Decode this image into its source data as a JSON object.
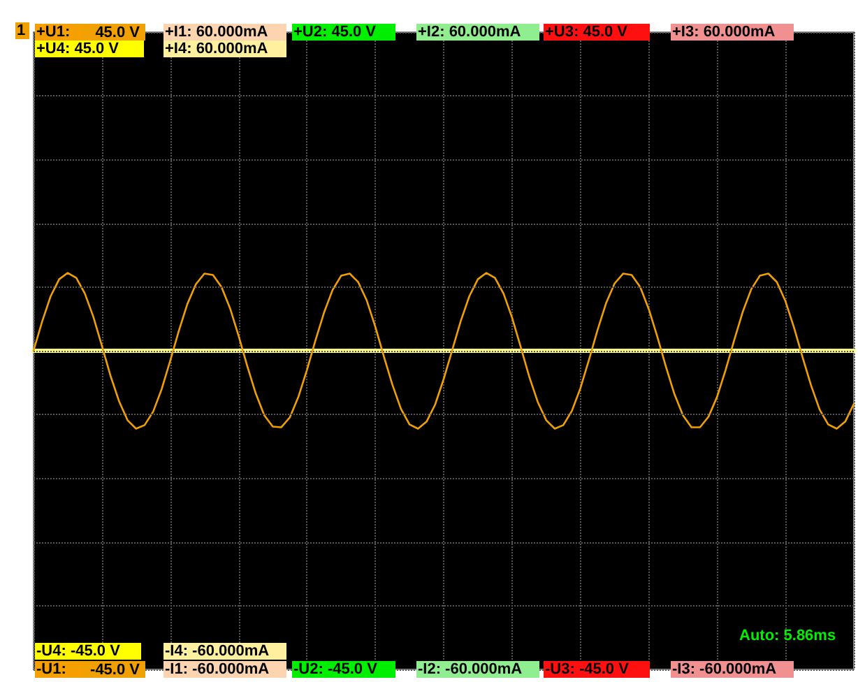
{
  "chart_data": {
    "type": "line",
    "categories": [
      null,
      null,
      null,
      null,
      null,
      null,
      null,
      null,
      null,
      null,
      null,
      null,
      null,
      null,
      null,
      null,
      null,
      null,
      null,
      null,
      null,
      null,
      null,
      null,
      null,
      null,
      null,
      null,
      null,
      null,
      null,
      null,
      null,
      null,
      null,
      null,
      null,
      null,
      null,
      null,
      null,
      null,
      null,
      null,
      null,
      null,
      null,
      null,
      null,
      null,
      null,
      null,
      null,
      null,
      null,
      null,
      null,
      null,
      null,
      null,
      null,
      null,
      null,
      null,
      null,
      null,
      null,
      null,
      null,
      null,
      null,
      null,
      null,
      null,
      null,
      null,
      null,
      null,
      null,
      null,
      null,
      null,
      null,
      null,
      null,
      null,
      null,
      null,
      null,
      null,
      null,
      null,
      null,
      null,
      null,
      null,
      null
    ],
    "series": [
      {
        "color": "#f0a000",
        "values": [
          0,
          4.1,
          7.7,
          10.1,
          11.0,
          10.3,
          8.1,
          4.8,
          0.7,
          -3.5,
          -7.1,
          -9.8,
          -11.0,
          -10.5,
          -8.6,
          -5.4,
          -1.4,
          2.8,
          6.6,
          9.4,
          10.9,
          10.7,
          9.0,
          6.0,
          2.1,
          -2.1,
          -6.0,
          -9.1,
          -10.7,
          -10.8,
          -9.4,
          -6.5,
          -2.7,
          1.5,
          5.4,
          8.6,
          10.6,
          10.9,
          9.7,
          7.1,
          3.4,
          -0.8,
          -4.8,
          -8.2,
          -10.4,
          -11.0,
          -10.0,
          -7.6,
          -4.0,
          0.1,
          4.2,
          7.7,
          10.1,
          11.0,
          10.3,
          8.1,
          4.7,
          0.6,
          -3.6,
          -7.2,
          -9.8,
          -11.0,
          -10.5,
          -8.5,
          -5.3,
          -1.3,
          2.9,
          6.7,
          9.5,
          10.9,
          10.7,
          9.0,
          5.9,
          2.0,
          -2.2,
          -6.1,
          -9.1,
          -10.8,
          -10.8,
          -9.3,
          -6.5,
          -2.7,
          1.5,
          5.5,
          8.7,
          10.6,
          10.9,
          9.7,
          7.0,
          3.3,
          -0.9,
          -4.9,
          -8.3,
          -10.4,
          -11.0,
          -10.0,
          -7.5
        ]
      },
      {
        "color": "#ffff80",
        "values": [
          0,
          0,
          0,
          0,
          0,
          0,
          0,
          0,
          0,
          0,
          0,
          0,
          0,
          0,
          0,
          0,
          0,
          0,
          0,
          0,
          0,
          0,
          0,
          0,
          0,
          0,
          0,
          0,
          0,
          0,
          0,
          0,
          0,
          0,
          0,
          0,
          0,
          0,
          0,
          0,
          0,
          0,
          0,
          0,
          0,
          0,
          0,
          0,
          0,
          0,
          0,
          0,
          0,
          0,
          0,
          0,
          0,
          0,
          0,
          0,
          0,
          0,
          0,
          0,
          0,
          0,
          0,
          0,
          0,
          0,
          0,
          0,
          0,
          0,
          0,
          0,
          0,
          0,
          0,
          0,
          0,
          0,
          0,
          0,
          0,
          0,
          0,
          0,
          0,
          0,
          0,
          0,
          0,
          0,
          0,
          0,
          0
        ]
      }
    ],
    "ylim": [
      -45,
      45
    ],
    "yticks": [
      {
        "value": -45,
        "label": "-45.0 V"
      },
      {
        "value": -36,
        "label": null
      },
      {
        "value": -27,
        "label": null
      },
      {
        "value": -18,
        "label": null
      },
      {
        "value": -9,
        "label": null
      },
      {
        "value": 0,
        "label": null
      },
      {
        "value": 9,
        "label": null
      },
      {
        "value": 18,
        "label": null
      },
      {
        "value": 27,
        "label": null
      },
      {
        "value": 36,
        "label": null
      },
      {
        "value": 45,
        "label": "45.0 V"
      }
    ],
    "grid": true,
    "line_style": "solid",
    "annotations": [
      "1",
      "+U1:",
      "+I1: 60.000mA",
      "+U2: 45.0 V",
      "+I2: 60.000mA",
      "+U3: 45.0 V",
      "+I3: 60.000mA",
      "+U4: 45.0 V",
      "+I4: 60.000mA",
      "Auto: 5.86ms",
      "-U4: -45.0 V",
      "-I4: -60.000mA",
      "-U1:",
      "-I1: -60.000mA",
      "-U2: -45.0 V",
      "-I2: -60.000mA",
      "-U3: -45.0 V",
      "-I3: -60.000mA"
    ]
  }
}
